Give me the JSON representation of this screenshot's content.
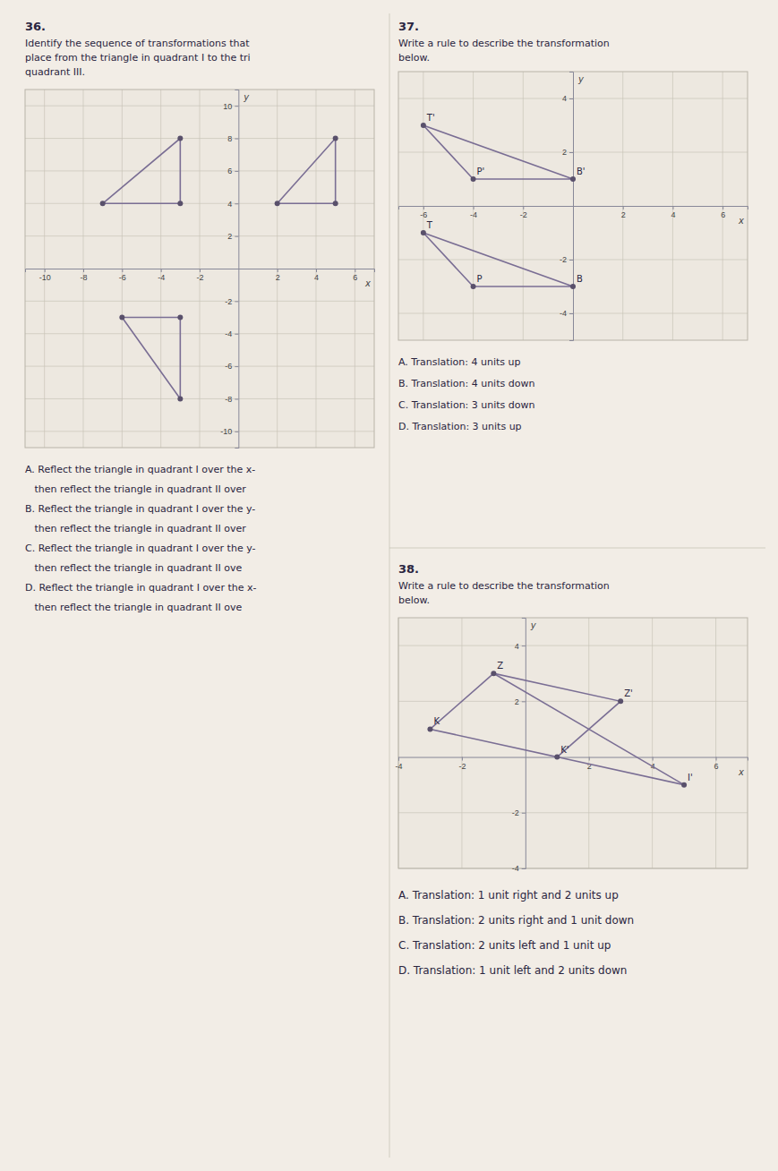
{
  "chart_data": [
    {
      "type": "polygon",
      "title": "36.",
      "subtitle": [
        "Identify the sequence of transformations that",
        "place from the triangle in quadrant I to the tri",
        "quadrant III."
      ],
      "xlabel": "x",
      "ylabel": "y",
      "xlim": [
        -11,
        7
      ],
      "ylim": [
        -11,
        11
      ],
      "xticks": [
        -10,
        -8,
        -6,
        -4,
        -2,
        2,
        4,
        6
      ],
      "yticks": [
        -10,
        -8,
        -6,
        -4,
        -2,
        2,
        4,
        6,
        8,
        10
      ],
      "grid": true,
      "series": [
        {
          "type": "polygon",
          "color": "#7a6e94",
          "marker": "circle",
          "x": [
            -7,
            -3,
            -3
          ],
          "values": [
            4,
            8,
            4
          ]
        },
        {
          "type": "polygon",
          "color": "#7a6e94",
          "marker": "circle",
          "x": [
            2,
            5,
            5
          ],
          "values": [
            4,
            8,
            4
          ]
        },
        {
          "type": "polygon",
          "color": "#7a6e94",
          "marker": "circle",
          "x": [
            -6,
            -3,
            -3
          ],
          "values": [
            -3,
            -3,
            -8
          ]
        }
      ],
      "answers": [
        "A. Reflect the triangle in quadrant I over the x-",
        "   then reflect the triangle in quadrant II over",
        "B. Reflect the triangle in quadrant I over the y-",
        "   then reflect the triangle in quadrant II over",
        "C. Reflect the triangle in quadrant I over the y-",
        "   then reflect the triangle in quadrant II ove",
        "D. Reflect the triangle in quadrant I over the x-",
        "   then reflect the triangle in quadrant II ove"
      ]
    },
    {
      "type": "polygon",
      "title": "37.",
      "subtitle": [
        "Write a rule to describe the transformation",
        "below."
      ],
      "xlabel": "x",
      "ylabel": "y",
      "xlim": [
        -7,
        7
      ],
      "ylim": [
        -5,
        5
      ],
      "xticks": [
        -6,
        -4,
        -2,
        2,
        4,
        6
      ],
      "yticks": [
        -4,
        -2,
        2,
        4
      ],
      "grid": true,
      "series": [
        {
          "type": "polygon",
          "color": "#7a6e94",
          "marker": "circle",
          "x": [
            -6,
            -4,
            0
          ],
          "values": [
            3,
            1,
            1
          ],
          "labels": [
            "T'",
            "P'",
            "B'"
          ]
        },
        {
          "type": "polygon",
          "color": "#7a6e94",
          "marker": "circle",
          "x": [
            -6,
            -4,
            0
          ],
          "values": [
            -1,
            -3,
            -3
          ],
          "labels": [
            "T",
            "P",
            "B"
          ]
        }
      ],
      "answers": [
        "A. Translation: 4 units up",
        "B. Translation: 4 units down",
        "C. Translation: 3 units down",
        "D. Translation: 3 units up"
      ]
    },
    {
      "type": "polygon",
      "title": "38.",
      "subtitle": [
        "Write a rule to describe the transformation",
        "below."
      ],
      "xlabel": "x",
      "ylabel": "y",
      "xlim": [
        -4,
        7
      ],
      "ylim": [
        -4,
        5
      ],
      "xticks": [
        -4,
        -2,
        2,
        4,
        6
      ],
      "yticks": [
        -4,
        -2,
        2,
        4
      ],
      "grid": true,
      "series": [
        {
          "type": "polygon",
          "color": "#7a6e94",
          "marker": "none",
          "x": [
            -3,
            -1,
            3,
            1
          ],
          "values": [
            1,
            3,
            2,
            0
          ]
        },
        {
          "type": "line",
          "color": "#7a6e94",
          "marker": "none",
          "x": [
            1,
            5
          ],
          "values": [
            0,
            -1
          ]
        },
        {
          "type": "line",
          "color": "#7a6e94",
          "marker": "none",
          "x": [
            -1,
            5
          ],
          "values": [
            3,
            -1
          ]
        },
        {
          "type": "scatter",
          "color": "#7a6e94",
          "marker": "circle",
          "x": [
            -3,
            -1,
            3,
            1,
            5
          ],
          "values": [
            1,
            3,
            2,
            0,
            -1
          ],
          "labels": [
            "K",
            "Z",
            "Z'",
            "K'",
            "I'"
          ]
        }
      ],
      "answers": [
        "A. Translation: 1 unit right and 2 units up",
        "B. Translation: 2 units right and 1 unit down",
        "C. Translation: 2 units left and 1 unit up",
        "D. Translation: 1 unit left and 2 units down"
      ]
    }
  ]
}
